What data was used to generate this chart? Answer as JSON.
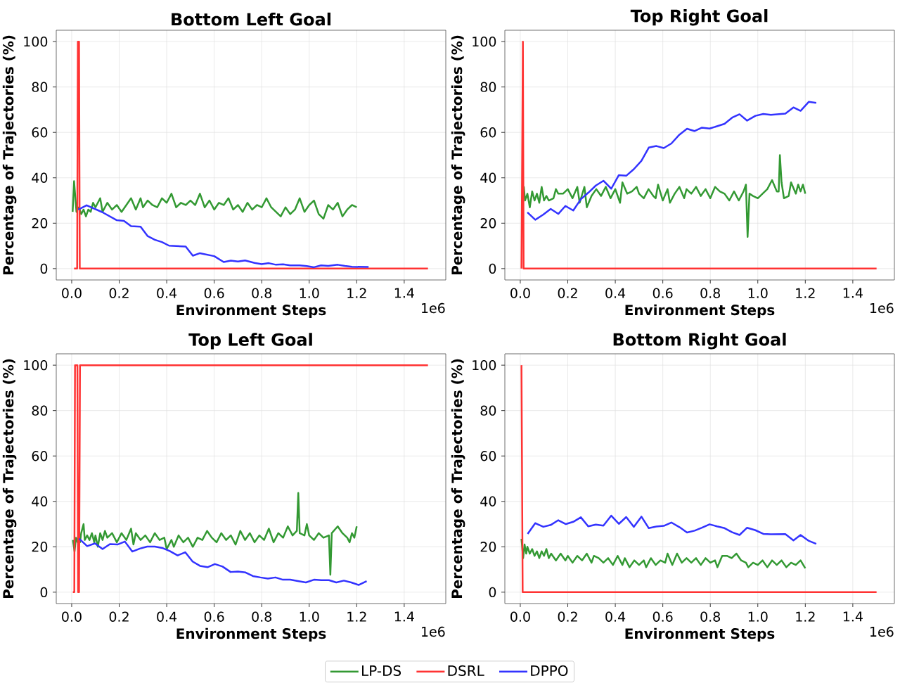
{
  "chart_data": [
    {
      "type": "line",
      "title": "Bottom Left Goal",
      "xlabel": "Environment Steps",
      "ylabel": "Percentage of Trajectories (%)",
      "annotations": [
        "1e6"
      ],
      "grid": true,
      "xlim": [
        -0.065,
        1.575
      ],
      "ylim": [
        -5,
        105
      ],
      "xticks": [
        {
          "value": 0,
          "label": "0.0"
        },
        {
          "value": 0.2,
          "label": "0.2"
        },
        {
          "value": 0.4,
          "label": "0.4"
        },
        {
          "value": 0.6,
          "label": "0.6"
        },
        {
          "value": 0.8,
          "label": "0.8"
        },
        {
          "value": 1.0,
          "label": "1.0"
        },
        {
          "value": 1.2,
          "label": "1.2"
        },
        {
          "value": 1.4,
          "label": "1.4"
        }
      ],
      "yticks": [
        0,
        20,
        40,
        60,
        80,
        100
      ],
      "series": [
        {
          "color": "#339933",
          "x": [
            0.004,
            0.01,
            0.02,
            0.03,
            0.04,
            0.05,
            0.06,
            0.07,
            0.08,
            0.09,
            0.1,
            0.12,
            0.13,
            0.15,
            0.17,
            0.19,
            0.21,
            0.23,
            0.25,
            0.27,
            0.29,
            0.3,
            0.32,
            0.34,
            0.36,
            0.38,
            0.4,
            0.42,
            0.44,
            0.46,
            0.48,
            0.5,
            0.52,
            0.54,
            0.56,
            0.58,
            0.6,
            0.62,
            0.64,
            0.66,
            0.68,
            0.7,
            0.72,
            0.74,
            0.76,
            0.78,
            0.8,
            0.82,
            0.84,
            0.86,
            0.88,
            0.9,
            0.92,
            0.94,
            0.96,
            0.98,
            1.0,
            1.02,
            1.04,
            1.06,
            1.08,
            1.1,
            1.12,
            1.14,
            1.16,
            1.18,
            1.2
          ],
          "values": [
            25,
            38.5,
            25,
            27,
            24,
            26,
            23,
            26,
            25,
            29,
            27,
            31,
            25,
            29,
            26,
            28,
            25,
            28,
            31,
            26,
            31,
            27,
            30,
            28,
            27,
            31,
            29,
            33,
            27,
            29,
            28,
            30,
            28,
            33,
            27,
            30,
            26,
            29,
            28,
            31,
            26,
            28,
            25,
            29,
            26,
            28,
            27,
            31,
            27,
            25,
            23,
            27,
            24,
            26,
            31,
            25,
            28,
            30,
            24,
            22,
            28,
            26,
            29,
            23,
            26,
            28,
            27
          ]
        },
        {
          "color": "#ff3333",
          "x": [
            0.01,
            0.023,
            0.026,
            0.031,
            0.034,
            1.5
          ],
          "values": [
            0,
            0,
            100,
            100,
            0,
            0
          ]
        },
        {
          "color": "#3333ff",
          "x": [
            0.028,
            0.063,
            0.128,
            0.19,
            0.22,
            0.25,
            0.29,
            0.32,
            0.35,
            0.38,
            0.41,
            0.48,
            0.51,
            0.54,
            0.6,
            0.64,
            0.67,
            0.7,
            0.73,
            0.77,
            0.8,
            0.83,
            0.86,
            0.89,
            0.92,
            0.96,
            0.99,
            1.02,
            1.05,
            1.08,
            1.12,
            1.15,
            1.18,
            1.25
          ],
          "values": [
            26,
            27.9,
            24.9,
            21.3,
            21,
            18.7,
            18.5,
            14.3,
            12.7,
            11.7,
            10.1,
            9.7,
            5.7,
            6.8,
            5.5,
            2.9,
            3.5,
            3.1,
            3.6,
            2.5,
            2,
            2.4,
            1.7,
            1.9,
            1.4,
            1.4,
            1.1,
            0.6,
            1.4,
            1.2,
            1.7,
            1.2,
            0.8,
            0.7
          ]
        }
      ]
    },
    {
      "type": "line",
      "title": "Top Right Goal",
      "xlabel": "Environment Steps",
      "ylabel": "Percentage of Trajectories (%)",
      "annotations": [
        "1e6"
      ],
      "grid": true,
      "xlim": [
        -0.065,
        1.575
      ],
      "ylim": [
        -5,
        105
      ],
      "xticks": [
        {
          "value": 0,
          "label": "0.0"
        },
        {
          "value": 0.2,
          "label": "0.2"
        },
        {
          "value": 0.4,
          "label": "0.4"
        },
        {
          "value": 0.6,
          "label": "0.6"
        },
        {
          "value": 0.8,
          "label": "0.8"
        },
        {
          "value": 1.0,
          "label": "1.0"
        },
        {
          "value": 1.2,
          "label": "1.2"
        },
        {
          "value": 1.4,
          "label": "1.4"
        }
      ],
      "yticks": [
        0,
        20,
        40,
        60,
        80,
        100
      ],
      "series": [
        {
          "color": "#339933",
          "x": [
            0.01,
            0.015,
            0.02,
            0.03,
            0.04,
            0.05,
            0.06,
            0.07,
            0.08,
            0.09,
            0.1,
            0.11,
            0.12,
            0.14,
            0.15,
            0.16,
            0.18,
            0.2,
            0.22,
            0.24,
            0.25,
            0.27,
            0.28,
            0.3,
            0.32,
            0.34,
            0.36,
            0.38,
            0.4,
            0.42,
            0.43,
            0.45,
            0.47,
            0.49,
            0.5,
            0.52,
            0.54,
            0.56,
            0.57,
            0.58,
            0.6,
            0.62,
            0.63,
            0.65,
            0.67,
            0.69,
            0.7,
            0.72,
            0.74,
            0.76,
            0.78,
            0.8,
            0.82,
            0.84,
            0.86,
            0.88,
            0.9,
            0.92,
            0.94,
            0.95,
            0.957,
            0.965,
            0.98,
            1.0,
            1.02,
            1.04,
            1.06,
            1.08,
            1.088,
            1.093,
            1.1,
            1.11,
            1.13,
            1.14,
            1.16,
            1.17,
            1.18,
            1.19,
            1.2
          ],
          "values": [
            30,
            36,
            30,
            33,
            27,
            34,
            30,
            33,
            29,
            36,
            30,
            32,
            30,
            31,
            35,
            33,
            33,
            35,
            31,
            36,
            29,
            36,
            27,
            32,
            35,
            32,
            36,
            31,
            35,
            29,
            38,
            33,
            34,
            36,
            33,
            31,
            35,
            32,
            31,
            37,
            30,
            35,
            29,
            33,
            36,
            31,
            35,
            33,
            36,
            32,
            35,
            31,
            36,
            34,
            33,
            30,
            34,
            30,
            34,
            37,
            14,
            33,
            32,
            31,
            33,
            35,
            39,
            34,
            34,
            50,
            38,
            31,
            32,
            38,
            33,
            37,
            34,
            37,
            33
          ]
        },
        {
          "color": "#ff3333",
          "x": [
            0.005,
            0.011,
            0.014,
            1.5
          ],
          "values": [
            0,
            100,
            0,
            0
          ]
        },
        {
          "color": "#3333ff",
          "x": [
            0.03,
            0.063,
            0.097,
            0.128,
            0.16,
            0.19,
            0.223,
            0.255,
            0.286,
            0.318,
            0.35,
            0.383,
            0.415,
            0.446,
            0.478,
            0.51,
            0.541,
            0.573,
            0.604,
            0.636,
            0.67,
            0.702,
            0.733,
            0.765,
            0.797,
            0.828,
            0.86,
            0.892,
            0.923,
            0.955,
            0.99,
            1.023,
            1.055,
            1.116,
            1.15,
            1.18,
            1.215,
            1.246
          ],
          "values": [
            24.8,
            21.5,
            23.8,
            26.3,
            24.1,
            27.6,
            25.6,
            30.6,
            33.4,
            36.6,
            38.7,
            35.2,
            41.2,
            40.9,
            43.8,
            47.5,
            53.3,
            54,
            53.1,
            55.1,
            59,
            61.6,
            60.6,
            62.1,
            61.7,
            62.7,
            63.8,
            66.5,
            68,
            65.2,
            67.3,
            68.1,
            67.7,
            68.3,
            71,
            69.5,
            73.5,
            73
          ]
        }
      ]
    },
    {
      "type": "line",
      "title": "Top Left Goal",
      "xlabel": "Environment Steps",
      "ylabel": "Percentage of Trajectories (%)",
      "annotations": [
        "1e6"
      ],
      "grid": true,
      "legend": "bottom",
      "xlim": [
        -0.065,
        1.575
      ],
      "ylim": [
        -5,
        105
      ],
      "xticks": [
        {
          "value": 0,
          "label": "0.0"
        },
        {
          "value": 0.2,
          "label": "0.2"
        },
        {
          "value": 0.4,
          "label": "0.4"
        },
        {
          "value": 0.6,
          "label": "0.6"
        },
        {
          "value": 0.8,
          "label": "0.8"
        },
        {
          "value": 1.0,
          "label": "1.0"
        },
        {
          "value": 1.2,
          "label": "1.2"
        },
        {
          "value": 1.4,
          "label": "1.4"
        }
      ],
      "yticks": [
        0,
        20,
        40,
        60,
        80,
        100
      ],
      "series": [
        {
          "name": "LP-DS",
          "color": "#339933",
          "x": [
            0.005,
            0.012,
            0.018,
            0.025,
            0.03,
            0.035,
            0.04,
            0.05,
            0.055,
            0.065,
            0.075,
            0.085,
            0.095,
            0.1,
            0.11,
            0.12,
            0.13,
            0.14,
            0.15,
            0.17,
            0.19,
            0.21,
            0.23,
            0.25,
            0.26,
            0.27,
            0.29,
            0.31,
            0.33,
            0.35,
            0.37,
            0.39,
            0.4,
            0.42,
            0.43,
            0.45,
            0.47,
            0.49,
            0.51,
            0.53,
            0.55,
            0.57,
            0.59,
            0.61,
            0.63,
            0.65,
            0.67,
            0.69,
            0.71,
            0.73,
            0.75,
            0.77,
            0.79,
            0.81,
            0.83,
            0.85,
            0.87,
            0.89,
            0.91,
            0.93,
            0.948,
            0.954,
            0.96,
            0.98,
            0.99,
            1.0,
            1.02,
            1.04,
            1.06,
            1.083,
            1.089,
            1.095,
            1.12,
            1.14,
            1.16,
            1.17,
            1.18,
            1.19,
            1.2
          ],
          "values": [
            23,
            18,
            24,
            22,
            27,
            22,
            26,
            30,
            23,
            25,
            23,
            26,
            22,
            25,
            20,
            26,
            23,
            27,
            24,
            26,
            22,
            26,
            23,
            28,
            21,
            26,
            23,
            25,
            22,
            26,
            23,
            24,
            19,
            23,
            20,
            25,
            22,
            24,
            20,
            24,
            23,
            27,
            24,
            22,
            26,
            23,
            25,
            21,
            27,
            23,
            26,
            22,
            25,
            23,
            28,
            22,
            26,
            24,
            29,
            25,
            27,
            43.7,
            26,
            25,
            30,
            25,
            23,
            26,
            24,
            25,
            7.7,
            26,
            29,
            26,
            24,
            22,
            26,
            24,
            29
          ]
        },
        {
          "name": "DSRL",
          "color": "#ff3333",
          "x": [
            0.005,
            0.011,
            0.014,
            0.024,
            0.027,
            0.031,
            0.035,
            1.5
          ],
          "values": [
            0,
            0,
            100,
            100,
            0,
            0,
            100,
            100
          ]
        },
        {
          "name": "DPPO",
          "color": "#3333ff",
          "x": [
            0.031,
            0.065,
            0.098,
            0.13,
            0.161,
            0.193,
            0.224,
            0.255,
            0.287,
            0.318,
            0.35,
            0.381,
            0.413,
            0.446,
            0.478,
            0.509,
            0.54,
            0.572,
            0.603,
            0.635,
            0.669,
            0.7,
            0.732,
            0.763,
            0.795,
            0.826,
            0.858,
            0.889,
            0.92,
            0.952,
            0.986,
            1.02,
            1.051,
            1.083,
            1.114,
            1.146,
            1.177,
            1.208,
            1.242
          ],
          "values": [
            23.6,
            20.3,
            21.5,
            19,
            21.2,
            21,
            22.3,
            17.9,
            19.2,
            20.1,
            20.1,
            19.5,
            18.1,
            16.2,
            17.6,
            13.5,
            11.6,
            11,
            12.4,
            11.3,
            8.9,
            9.1,
            8.7,
            7.1,
            6.5,
            6,
            6.5,
            5.5,
            5.5,
            4.9,
            4.3,
            5.5,
            5.3,
            5.3,
            4.3,
            5.1,
            4.3,
            3.2,
            4.9
          ]
        }
      ]
    },
    {
      "type": "line",
      "title": "Bottom Right Goal",
      "xlabel": "Environment Steps",
      "ylabel": "Percentage of Trajectories (%)",
      "annotations": [
        "1e6"
      ],
      "grid": true,
      "xlim": [
        -0.065,
        1.575
      ],
      "ylim": [
        -5,
        105
      ],
      "xticks": [
        {
          "value": 0,
          "label": "0.0"
        },
        {
          "value": 0.2,
          "label": "0.2"
        },
        {
          "value": 0.4,
          "label": "0.4"
        },
        {
          "value": 0.6,
          "label": "0.6"
        },
        {
          "value": 0.8,
          "label": "0.8"
        },
        {
          "value": 1.0,
          "label": "1.0"
        },
        {
          "value": 1.2,
          "label": "1.2"
        },
        {
          "value": 1.4,
          "label": "1.4"
        }
      ],
      "yticks": [
        0,
        20,
        40,
        60,
        80,
        100
      ],
      "series": [
        {
          "color": "#339933",
          "x": [
            0.005,
            0.012,
            0.018,
            0.025,
            0.03,
            0.04,
            0.05,
            0.06,
            0.07,
            0.08,
            0.09,
            0.1,
            0.11,
            0.12,
            0.13,
            0.15,
            0.17,
            0.19,
            0.2,
            0.22,
            0.24,
            0.26,
            0.28,
            0.3,
            0.31,
            0.33,
            0.35,
            0.37,
            0.39,
            0.41,
            0.43,
            0.44,
            0.46,
            0.48,
            0.5,
            0.52,
            0.53,
            0.55,
            0.57,
            0.59,
            0.61,
            0.62,
            0.64,
            0.66,
            0.68,
            0.7,
            0.72,
            0.74,
            0.76,
            0.78,
            0.8,
            0.82,
            0.83,
            0.85,
            0.87,
            0.89,
            0.91,
            0.93,
            0.95,
            0.96,
            0.98,
            1.0,
            1.02,
            1.04,
            1.06,
            1.08,
            1.1,
            1.12,
            1.14,
            1.16,
            1.18,
            1.2
          ],
          "values": [
            23.5,
            15,
            21,
            17,
            20,
            17,
            19,
            16,
            18,
            15,
            18,
            16,
            19,
            15,
            17,
            14,
            17,
            14,
            16,
            13,
            16,
            14,
            17,
            13,
            16,
            15,
            13,
            15,
            12,
            16,
            12,
            15,
            11,
            14,
            12,
            14,
            11,
            15,
            12,
            14,
            13,
            17,
            12,
            17,
            13,
            15,
            13,
            15,
            12,
            15,
            13,
            14,
            11,
            16,
            16,
            15,
            17,
            14,
            13,
            11,
            13,
            12,
            14,
            11,
            14,
            12,
            14,
            11,
            13,
            12,
            14,
            10.5
          ]
        },
        {
          "color": "#ff3333",
          "x": [
            0.005,
            0.01,
            1.5
          ],
          "values": [
            100,
            0,
            0
          ]
        },
        {
          "color": "#3333ff",
          "x": [
            0.031,
            0.063,
            0.097,
            0.128,
            0.16,
            0.192,
            0.223,
            0.255,
            0.286,
            0.318,
            0.35,
            0.383,
            0.415,
            0.446,
            0.478,
            0.51,
            0.541,
            0.573,
            0.604,
            0.636,
            0.671,
            0.702,
            0.734,
            0.765,
            0.797,
            0.828,
            0.86,
            0.892,
            0.923,
            0.955,
            0.99,
            1.023,
            1.055,
            1.116,
            1.15,
            1.18,
            1.215,
            1.246
          ],
          "values": [
            25.7,
            30.4,
            28.8,
            29.6,
            31.7,
            30,
            31,
            33,
            29,
            29.8,
            29.3,
            33.7,
            30.1,
            33.1,
            28.8,
            33.3,
            28.2,
            28.9,
            29.2,
            30.7,
            28.6,
            26.3,
            27.1,
            28.4,
            29.9,
            29,
            28.2,
            26.4,
            25.2,
            28.4,
            27.3,
            25.7,
            25.5,
            25.6,
            22.8,
            25.2,
            22.6,
            21.3
          ]
        }
      ]
    }
  ]
}
